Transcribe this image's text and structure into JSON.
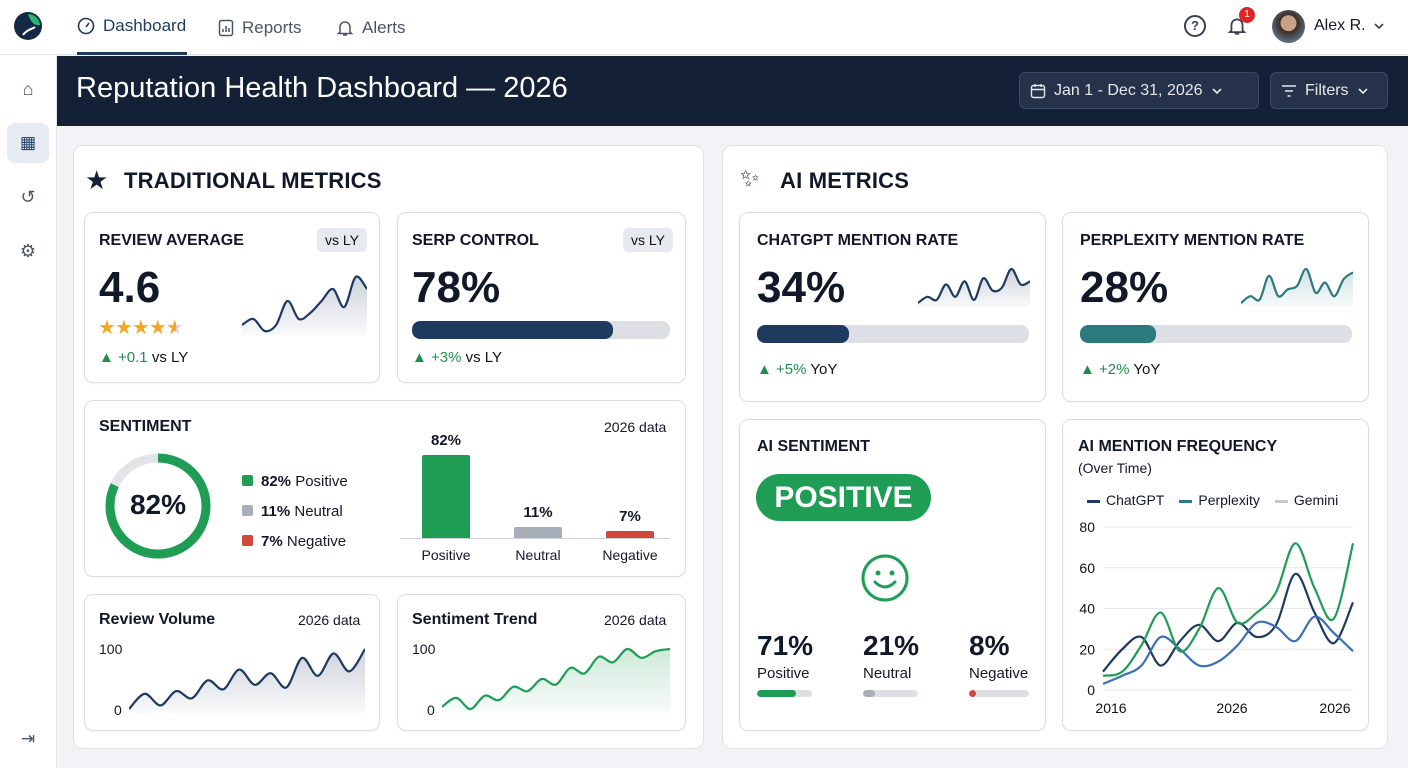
{
  "nav": {
    "tabs": [
      {
        "label": "Dashboard",
        "icon": "gauge-icon",
        "active": true
      },
      {
        "label": "Reports",
        "icon": "report-icon"
      },
      {
        "label": "Alerts",
        "icon": "bell-icon"
      }
    ],
    "notification_count": "1",
    "user_name": "Alex R."
  },
  "sidebar": {
    "items": [
      "home-icon",
      "dashboard-grid-icon",
      "history-icon",
      "gear-icon"
    ],
    "active": 1,
    "bottom": "logout-icon"
  },
  "header": {
    "title": "Reputation Health Dashboard — 2026",
    "date_range": "Jan 1 - Dec 31, 2026",
    "filters_label": "Filters"
  },
  "colors": {
    "navy": "#1e3a5f",
    "teal": "#2a7a7e",
    "green": "#1f9d55",
    "grey": "#a9afb8",
    "red": "#d0483a",
    "header": "#142035"
  },
  "traditional": {
    "title": "TRADITIONAL METRICS",
    "review_average": {
      "title": "REVIEW AVERAGE",
      "badge": "vs LY",
      "value": "4.6",
      "rating": 4.6,
      "delta": "+0.1",
      "delta_suffix": "vs LY",
      "trend": [
        3,
        4,
        2,
        3,
        7,
        4,
        5,
        7,
        9,
        6,
        11,
        9
      ]
    },
    "serp_control": {
      "title": "SERP CONTROL",
      "badge": "vs LY",
      "value": "78%",
      "progress": 78,
      "delta": "+3%",
      "delta_suffix": "vs LY"
    },
    "sentiment": {
      "title": "SENTIMENT",
      "note": "2026 data",
      "donut_value": "82%",
      "donut_pct": 82,
      "legend": [
        {
          "pct": "82%",
          "label": "Positive"
        },
        {
          "pct": "11%",
          "label": "Neutral"
        },
        {
          "pct": "7%",
          "label": "Negative"
        }
      ],
      "bars": [
        {
          "label": "Positive",
          "value": 82,
          "text": "82%"
        },
        {
          "label": "Neutral",
          "value": 11,
          "text": "11%"
        },
        {
          "label": "Negative",
          "value": 7,
          "text": "7%"
        }
      ]
    },
    "review_volume": {
      "title": "Review Volume",
      "note": "2026 data",
      "y_ticks": [
        "100",
        "0"
      ],
      "trend": [
        18,
        35,
        22,
        38,
        30,
        50,
        40,
        62,
        45,
        58,
        42,
        75,
        55,
        80,
        60,
        85
      ]
    },
    "sentiment_trend": {
      "title": "Sentiment Trend",
      "note": "2026 data",
      "y_ticks": [
        "100",
        "0"
      ],
      "trend": [
        20,
        28,
        18,
        30,
        26,
        38,
        34,
        45,
        40,
        55,
        50,
        65,
        60,
        72,
        64,
        70,
        72
      ]
    }
  },
  "ai": {
    "title": "AI METRICS",
    "chatgpt": {
      "title": "CHATGPT MENTION RATE",
      "value": "34%",
      "progress": 34,
      "delta": "+5%",
      "delta_suffix": "YoY",
      "trend": [
        3,
        5,
        4,
        9,
        5,
        10,
        4,
        11,
        7,
        8,
        14,
        9,
        10
      ]
    },
    "perplexity": {
      "title": "PERPLEXITY MENTION RATE",
      "value": "28%",
      "progress": 28,
      "delta": "+2%",
      "delta_suffix": "YoY",
      "trend": [
        3,
        5,
        4,
        11,
        5,
        7,
        8,
        13,
        6,
        9,
        5,
        10,
        12
      ]
    },
    "ai_sentiment": {
      "title": "AI SENTIMENT",
      "badge": "POSITIVE",
      "icon": "smiley-icon",
      "items": [
        {
          "pct": "71%",
          "label": "Positive",
          "value": 71
        },
        {
          "pct": "21%",
          "label": "Neutral",
          "value": 21
        },
        {
          "pct": "8%",
          "label": "Negative",
          "value": 8
        }
      ]
    }
  },
  "chart_data": {
    "type": "line",
    "title": "AI MENTION FREQUENCY",
    "subtitle": "(Over Time)",
    "x_tick_labels": [
      "2016",
      "2026",
      "2026"
    ],
    "ylim": [
      0,
      80
    ],
    "y_ticks": [
      0,
      20,
      40,
      60,
      80
    ],
    "grid": true,
    "legend": "top",
    "series": [
      {
        "name": "ChatGPT",
        "legend_color": "#1e3a5f",
        "line_color": "#1e3a5f",
        "values": [
          9,
          20,
          26,
          12,
          24,
          32,
          24,
          33,
          26,
          32,
          57,
          38,
          23,
          43
        ]
      },
      {
        "name": "Perplexity",
        "legend_color": "#2a7a8c",
        "line_color": "#3b6fb6",
        "values": [
          3,
          7,
          12,
          26,
          20,
          12,
          14,
          22,
          33,
          31,
          24,
          36,
          28,
          19
        ]
      },
      {
        "name": "Gemini",
        "legend_color": "#c4c9d0",
        "line_color": "#1f9d55",
        "values": [
          7,
          9,
          22,
          38,
          19,
          30,
          50,
          33,
          38,
          48,
          72,
          50,
          35,
          72
        ]
      }
    ]
  }
}
